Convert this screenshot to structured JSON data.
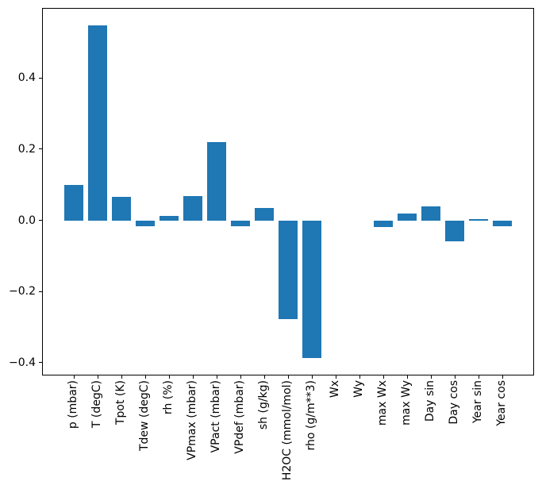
{
  "chart_data": {
    "type": "bar",
    "title": "",
    "xlabel": "",
    "ylabel": "",
    "categories": [
      "p (mbar)",
      "T (degC)",
      "Tpot (K)",
      "Tdew (degC)",
      "rh (%)",
      "VPmax (mbar)",
      "VPact (mbar)",
      "VPdef (mbar)",
      "sh (g/kg)",
      "H2OC (mmol/mol)",
      "rho (g/m**3)",
      "Wx",
      "Wy",
      "max Wx",
      "max Wy",
      "Day sin",
      "Day cos",
      "Year sin",
      "Year cos"
    ],
    "values": [
      0.1,
      0.549,
      0.065,
      -0.017,
      0.013,
      0.068,
      0.22,
      -0.017,
      0.034,
      -0.278,
      -0.388,
      0.0,
      0.0,
      -0.019,
      0.018,
      0.04,
      -0.06,
      0.004,
      -0.017
    ],
    "yticks": [
      -0.4,
      -0.2,
      0.0,
      0.2,
      0.4
    ],
    "ylim": [
      -0.434,
      0.597
    ],
    "x_tick_rotation": 90,
    "grid": false,
    "legend": false,
    "bar_color": "#1f77b4",
    "spine_color": "#000000",
    "background_color": "#ffffff"
  }
}
